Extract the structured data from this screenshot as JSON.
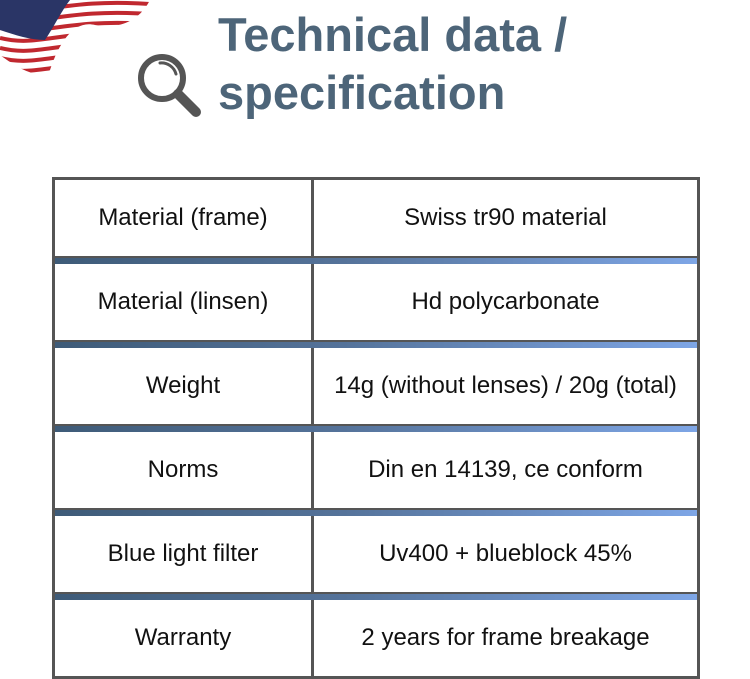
{
  "header": {
    "title_line1": "Technical data /",
    "title_line2": "specification",
    "title_color": "#4d6579",
    "icons": [
      "us-flag-icon",
      "magnifier-icon"
    ]
  },
  "table": {
    "rows": [
      {
        "label": "Material (frame)",
        "value": "Swiss tr90 material"
      },
      {
        "label": "Material (linsen)",
        "value": "Hd polycarbonate"
      },
      {
        "label": "Weight",
        "value": "14g (without lenses) / 20g (total)"
      },
      {
        "label": "Norms",
        "value": "Din en 14139, ce conform"
      },
      {
        "label": "Blue light filter",
        "value": "Uv400 + blueblock 45%"
      },
      {
        "label": "Warranty",
        "value": "2 years for frame breakage"
      }
    ],
    "separator_colors": [
      "#3e5b78",
      "#7ea6e6"
    ]
  }
}
